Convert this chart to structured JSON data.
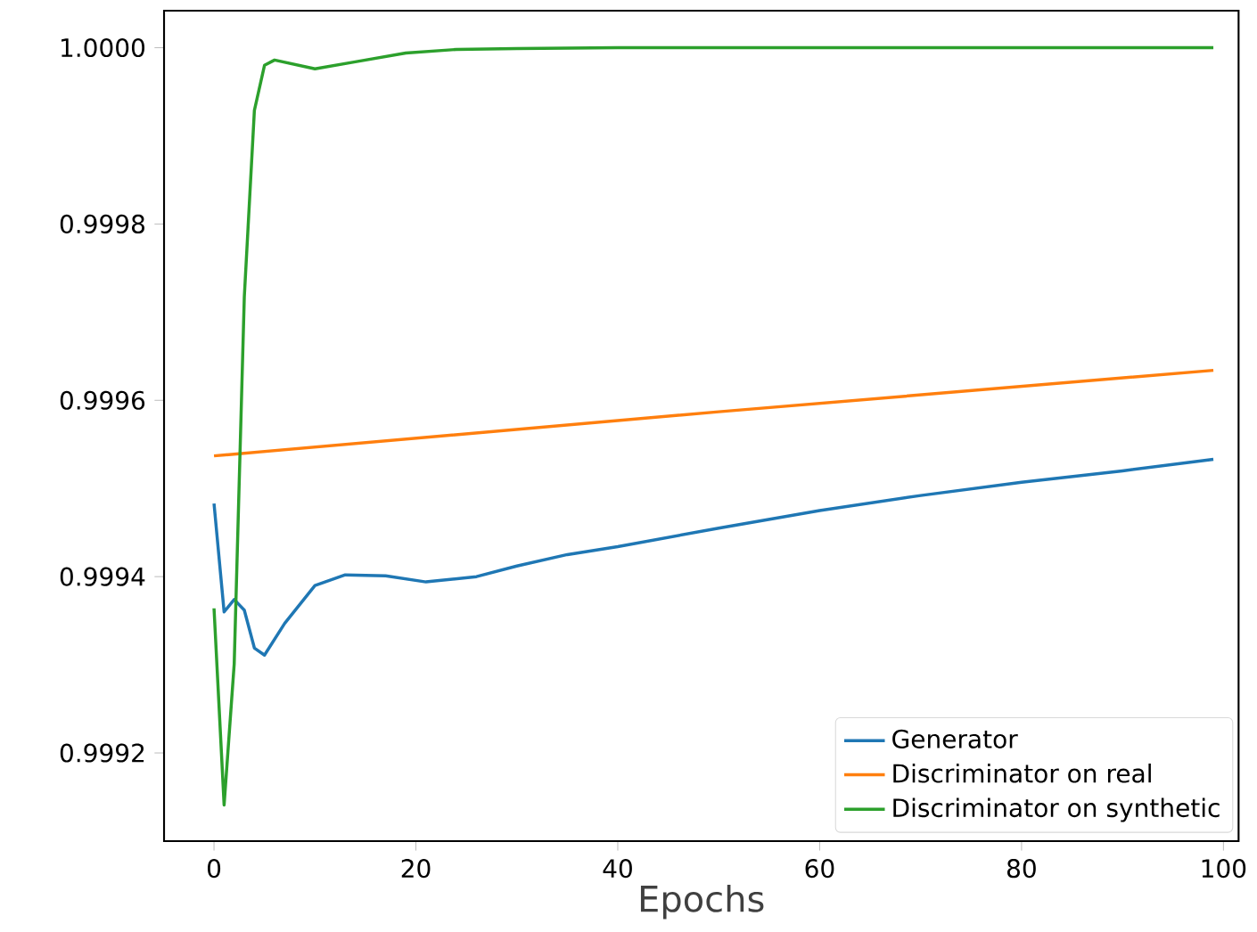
{
  "chart_data": {
    "type": "line",
    "xlabel": "Epochs",
    "xlim": [
      -4.95,
      101.5
    ],
    "ylim": [
      0.9991,
      1.000042
    ],
    "xticks": [
      0,
      20,
      40,
      60,
      80,
      100
    ],
    "yticks": [
      0.9992,
      0.9994,
      0.9996,
      0.9998,
      {
        "value": 1.0,
        "label": "1.0000"
      }
    ],
    "legend": "bottom right",
    "grid": false,
    "line_style": "solid",
    "marker": "none",
    "series": [
      {
        "name": "Generator",
        "color": "#1f77b4",
        "x": [
          0,
          1,
          2,
          3,
          4,
          5,
          7,
          10,
          13,
          17,
          21,
          26,
          30,
          35,
          40,
          50,
          60,
          70,
          80,
          90,
          99
        ],
        "values": [
          0.999483,
          0.99936,
          0.999374,
          0.999362,
          0.999319,
          0.999311,
          0.999347,
          0.99939,
          0.999402,
          0.999401,
          0.999394,
          0.9994,
          0.999412,
          0.999425,
          0.999434,
          0.999455,
          0.999475,
          0.999492,
          0.999507,
          0.99952,
          0.999533
        ]
      },
      {
        "name": "Discriminator on real",
        "color": "#ff7f0e",
        "x": [
          0,
          50,
          99
        ],
        "values": [
          0.999537,
          0.999587,
          0.999634
        ]
      },
      {
        "name": "Discriminator on synthetic",
        "color": "#2ca02c",
        "x": [
          0,
          1,
          2,
          3,
          4,
          5,
          6,
          10,
          14,
          19,
          24,
          30,
          40,
          60,
          80,
          99
        ],
        "values": [
          0.999364,
          0.999141,
          0.999301,
          0.999717,
          0.999929,
          0.99998,
          0.999986,
          0.999976,
          0.999984,
          0.999994,
          0.999998,
          0.999999,
          1.0,
          1.0,
          1.0,
          1.0
        ]
      }
    ]
  }
}
